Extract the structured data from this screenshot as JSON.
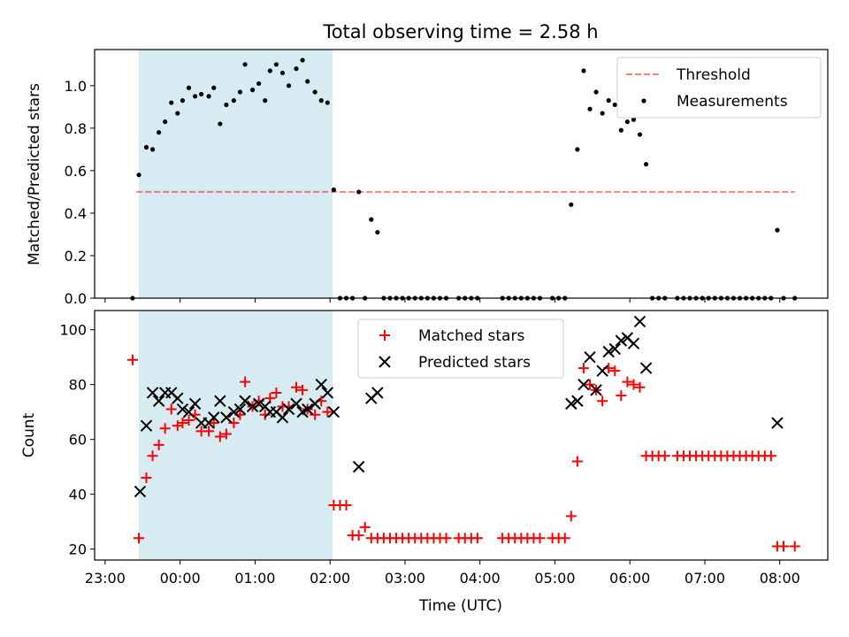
{
  "figure": {
    "title": "Total observing time = 2.58 h",
    "xlabel": "Time (UTC)",
    "x_ticks": [
      "23:00",
      "00:00",
      "01:00",
      "02:00",
      "03:00",
      "04:00",
      "05:00",
      "06:00",
      "07:00",
      "08:00"
    ],
    "colors": {
      "highlight": "#add8e6",
      "threshold": "#ff0000",
      "measurements": "#000000",
      "matched": "#ff0000",
      "predicted": "#000000"
    }
  },
  "chart_data": [
    {
      "type": "scatter",
      "ylabel": "Matched/Predicted stars",
      "ylim": [
        0,
        1.17
      ],
      "y_ticks": [
        "0.0",
        "0.2",
        "0.4",
        "0.6",
        "0.8",
        "1.0"
      ],
      "xlim_hours": [
        22.86,
        32.64
      ],
      "highlight_span": [
        "23:27",
        "02:02"
      ],
      "grid": false,
      "legend_position": "top-right",
      "threshold": {
        "name": "Threshold",
        "y": 0.5,
        "x_start": "23:25",
        "x_end": "08:12"
      },
      "series": [
        {
          "name": "Measurements",
          "points": [
            [
              "23:22",
              0.0
            ],
            [
              "23:27",
              0.58
            ],
            [
              "23:33",
              0.71
            ],
            [
              "23:38",
              0.7
            ],
            [
              "23:43",
              0.78
            ],
            [
              "23:48",
              0.83
            ],
            [
              "23:53",
              0.92
            ],
            [
              "23:58",
              0.87
            ],
            [
              "00:02",
              0.93
            ],
            [
              "00:07",
              0.99
            ],
            [
              "00:12",
              0.95
            ],
            [
              "00:17",
              0.96
            ],
            [
              "00:23",
              0.95
            ],
            [
              "00:27",
              0.99
            ],
            [
              "00:32",
              0.82
            ],
            [
              "00:37",
              0.91
            ],
            [
              "00:43",
              0.93
            ],
            [
              "00:48",
              0.97
            ],
            [
              "00:52",
              1.1
            ],
            [
              "00:58",
              0.98
            ],
            [
              "01:03",
              1.01
            ],
            [
              "01:08",
              0.93
            ],
            [
              "01:12",
              1.07
            ],
            [
              "01:17",
              1.1
            ],
            [
              "01:22",
              1.06
            ],
            [
              "01:27",
              1.0
            ],
            [
              "01:33",
              1.08
            ],
            [
              "01:38",
              1.12
            ],
            [
              "01:42",
              1.02
            ],
            [
              "01:48",
              0.97
            ],
            [
              "01:53",
              0.93
            ],
            [
              "01:58",
              0.92
            ],
            [
              "02:03",
              0.51
            ],
            [
              "02:08",
              0.0
            ],
            [
              "02:13",
              0.0
            ],
            [
              "02:18",
              0.0
            ],
            [
              "02:23",
              0.5
            ],
            [
              "02:28",
              0.0
            ],
            [
              "02:33",
              0.37
            ],
            [
              "02:38",
              0.31
            ],
            [
              "02:43",
              0.0
            ],
            [
              "02:48",
              0.0
            ],
            [
              "02:53",
              0.0
            ],
            [
              "02:58",
              0.0
            ],
            [
              "03:03",
              0.0
            ],
            [
              "03:08",
              0.0
            ],
            [
              "03:13",
              0.0
            ],
            [
              "03:18",
              0.0
            ],
            [
              "03:23",
              0.0
            ],
            [
              "03:28",
              0.0
            ],
            [
              "03:33",
              0.0
            ],
            [
              "03:43",
              0.0
            ],
            [
              "03:48",
              0.0
            ],
            [
              "03:53",
              0.0
            ],
            [
              "03:58",
              0.0
            ],
            [
              "04:18",
              0.0
            ],
            [
              "04:23",
              0.0
            ],
            [
              "04:28",
              0.0
            ],
            [
              "04:33",
              0.0
            ],
            [
              "04:38",
              0.0
            ],
            [
              "04:43",
              0.0
            ],
            [
              "04:48",
              0.0
            ],
            [
              "04:58",
              0.0
            ],
            [
              "05:03",
              0.0
            ],
            [
              "05:08",
              0.0
            ],
            [
              "05:13",
              0.44
            ],
            [
              "05:18",
              0.7
            ],
            [
              "05:23",
              1.07
            ],
            [
              "05:28",
              0.89
            ],
            [
              "05:33",
              0.97
            ],
            [
              "05:38",
              0.87
            ],
            [
              "05:43",
              0.93
            ],
            [
              "05:48",
              0.91
            ],
            [
              "05:53",
              0.79
            ],
            [
              "05:58",
              0.83
            ],
            [
              "06:03",
              0.84
            ],
            [
              "06:08",
              0.77
            ],
            [
              "06:13",
              0.63
            ],
            [
              "06:18",
              0.0
            ],
            [
              "06:23",
              0.0
            ],
            [
              "06:28",
              0.0
            ],
            [
              "06:38",
              0.0
            ],
            [
              "06:43",
              0.0
            ],
            [
              "06:48",
              0.0
            ],
            [
              "06:53",
              0.0
            ],
            [
              "06:58",
              0.0
            ],
            [
              "07:03",
              0.0
            ],
            [
              "07:08",
              0.0
            ],
            [
              "07:13",
              0.0
            ],
            [
              "07:18",
              0.0
            ],
            [
              "07:23",
              0.0
            ],
            [
              "07:28",
              0.0
            ],
            [
              "07:33",
              0.0
            ],
            [
              "07:38",
              0.0
            ],
            [
              "07:43",
              0.0
            ],
            [
              "07:48",
              0.0
            ],
            [
              "07:53",
              0.0
            ],
            [
              "07:58",
              0.32
            ],
            [
              "08:03",
              0.0
            ],
            [
              "08:12",
              0.0
            ]
          ]
        }
      ]
    },
    {
      "type": "scatter",
      "ylabel": "Count",
      "ylim": [
        16,
        107
      ],
      "y_ticks": [
        "20",
        "40",
        "60",
        "80",
        "100"
      ],
      "xlim_hours": [
        22.86,
        32.64
      ],
      "highlight_span": [
        "23:27",
        "02:02"
      ],
      "grid": false,
      "legend_position": "top-center",
      "series": [
        {
          "name": "Matched stars",
          "marker": "plus",
          "points": [
            [
              "23:22",
              89
            ],
            [
              "23:27",
              24
            ],
            [
              "23:33",
              46
            ],
            [
              "23:38",
              54
            ],
            [
              "23:43",
              58
            ],
            [
              "23:48",
              64
            ],
            [
              "23:53",
              71
            ],
            [
              "23:58",
              65
            ],
            [
              "00:02",
              66
            ],
            [
              "00:07",
              67
            ],
            [
              "00:12",
              69
            ],
            [
              "00:17",
              63
            ],
            [
              "00:23",
              63
            ],
            [
              "00:27",
              66
            ],
            [
              "00:32",
              61
            ],
            [
              "00:37",
              62
            ],
            [
              "00:43",
              66
            ],
            [
              "00:48",
              69
            ],
            [
              "00:52",
              81
            ],
            [
              "00:58",
              72
            ],
            [
              "01:03",
              74
            ],
            [
              "01:08",
              69
            ],
            [
              "01:12",
              75
            ],
            [
              "01:17",
              77
            ],
            [
              "01:22",
              72
            ],
            [
              "01:27",
              72
            ],
            [
              "01:33",
              79
            ],
            [
              "01:38",
              78
            ],
            [
              "01:42",
              71
            ],
            [
              "01:48",
              69
            ],
            [
              "01:53",
              74
            ],
            [
              "01:58",
              70
            ],
            [
              "02:03",
              36
            ],
            [
              "02:08",
              36
            ],
            [
              "02:13",
              36
            ],
            [
              "02:18",
              25
            ],
            [
              "02:23",
              25
            ],
            [
              "02:28",
              28
            ],
            [
              "02:33",
              24
            ],
            [
              "02:38",
              24
            ],
            [
              "02:43",
              24
            ],
            [
              "02:48",
              24
            ],
            [
              "02:53",
              24
            ],
            [
              "02:58",
              24
            ],
            [
              "03:03",
              24
            ],
            [
              "03:08",
              24
            ],
            [
              "03:13",
              24
            ],
            [
              "03:18",
              24
            ],
            [
              "03:23",
              24
            ],
            [
              "03:28",
              24
            ],
            [
              "03:33",
              24
            ],
            [
              "03:43",
              24
            ],
            [
              "03:48",
              24
            ],
            [
              "03:53",
              24
            ],
            [
              "03:58",
              24
            ],
            [
              "04:18",
              24
            ],
            [
              "04:23",
              24
            ],
            [
              "04:28",
              24
            ],
            [
              "04:33",
              24
            ],
            [
              "04:38",
              24
            ],
            [
              "04:43",
              24
            ],
            [
              "04:48",
              24
            ],
            [
              "04:58",
              24
            ],
            [
              "05:03",
              24
            ],
            [
              "05:08",
              24
            ],
            [
              "05:13",
              32
            ],
            [
              "05:18",
              52
            ],
            [
              "05:23",
              86
            ],
            [
              "05:28",
              80
            ],
            [
              "05:33",
              78
            ],
            [
              "05:38",
              74
            ],
            [
              "05:43",
              86
            ],
            [
              "05:48",
              85
            ],
            [
              "05:53",
              76
            ],
            [
              "05:58",
              81
            ],
            [
              "06:03",
              80
            ],
            [
              "06:08",
              79
            ],
            [
              "06:13",
              54
            ],
            [
              "06:18",
              54
            ],
            [
              "06:23",
              54
            ],
            [
              "06:28",
              54
            ],
            [
              "06:38",
              54
            ],
            [
              "06:43",
              54
            ],
            [
              "06:48",
              54
            ],
            [
              "06:53",
              54
            ],
            [
              "06:58",
              54
            ],
            [
              "07:03",
              54
            ],
            [
              "07:08",
              54
            ],
            [
              "07:13",
              54
            ],
            [
              "07:18",
              54
            ],
            [
              "07:23",
              54
            ],
            [
              "07:28",
              54
            ],
            [
              "07:33",
              54
            ],
            [
              "07:38",
              54
            ],
            [
              "07:43",
              54
            ],
            [
              "07:48",
              54
            ],
            [
              "07:53",
              54
            ],
            [
              "07:58",
              21
            ],
            [
              "08:03",
              21
            ],
            [
              "08:12",
              21
            ]
          ]
        },
        {
          "name": "Predicted stars",
          "marker": "x",
          "points": [
            [
              "23:28",
              41
            ],
            [
              "23:33",
              65
            ],
            [
              "23:38",
              77
            ],
            [
              "23:43",
              74
            ],
            [
              "23:48",
              77
            ],
            [
              "23:53",
              77
            ],
            [
              "23:58",
              75
            ],
            [
              "00:02",
              71
            ],
            [
              "00:07",
              70
            ],
            [
              "00:12",
              73
            ],
            [
              "00:17",
              66
            ],
            [
              "00:23",
              66
            ],
            [
              "00:27",
              68
            ],
            [
              "00:32",
              74
            ],
            [
              "00:37",
              68
            ],
            [
              "00:43",
              70
            ],
            [
              "00:48",
              71
            ],
            [
              "00:52",
              74
            ],
            [
              "00:58",
              72
            ],
            [
              "01:03",
              73
            ],
            [
              "01:08",
              72
            ],
            [
              "01:12",
              70
            ],
            [
              "01:17",
              70
            ],
            [
              "01:22",
              68
            ],
            [
              "01:27",
              71
            ],
            [
              "01:33",
              73
            ],
            [
              "01:38",
              70
            ],
            [
              "01:42",
              71
            ],
            [
              "01:48",
              73
            ],
            [
              "01:53",
              80
            ],
            [
              "01:58",
              77
            ],
            [
              "02:03",
              70
            ],
            [
              "02:23",
              50
            ],
            [
              "02:33",
              75
            ],
            [
              "02:38",
              77
            ],
            [
              "05:13",
              73
            ],
            [
              "05:18",
              74
            ],
            [
              "05:23",
              80
            ],
            [
              "05:28",
              90
            ],
            [
              "05:33",
              78
            ],
            [
              "05:38",
              85
            ],
            [
              "05:43",
              92
            ],
            [
              "05:48",
              93
            ],
            [
              "05:53",
              96
            ],
            [
              "05:58",
              97
            ],
            [
              "06:03",
              95
            ],
            [
              "06:08",
              103
            ],
            [
              "06:13",
              86
            ],
            [
              "07:58",
              66
            ]
          ]
        }
      ]
    }
  ]
}
